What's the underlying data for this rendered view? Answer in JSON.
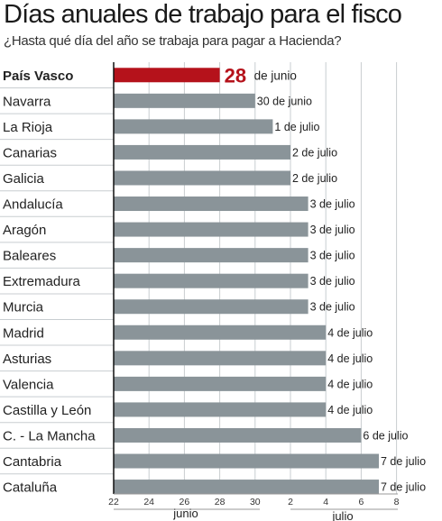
{
  "title": "Días anuales de trabajo para el fisco",
  "subtitle": "¿Hasta qué día del año se trabaja para pagar a Hacienda?",
  "colors": {
    "highlight": "#b5121b",
    "bar": "#8a9499",
    "grid": "#c8cdd0",
    "rule": "#c8cdd0"
  },
  "chart_data": {
    "type": "bar",
    "orientation": "horizontal",
    "title": "Días anuales de trabajo para el fisco",
    "subtitle": "¿Hasta qué día del año se trabaja para pagar a Hacienda?",
    "x_axis": {
      "unit": "day",
      "range": [
        "22 de junio",
        "8 de julio"
      ],
      "tick_labels": [
        "22",
        "24",
        "26",
        "28",
        "30",
        "2",
        "4",
        "6",
        "8"
      ],
      "month_labels": [
        "junio",
        "julio"
      ]
    },
    "grid": true,
    "highlight_category": "País Vasco",
    "categories": [
      "País Vasco",
      "Navarra",
      "La Rioja",
      "Canarias",
      "Galicia",
      "Andalucía",
      "Aragón",
      "Baleares",
      "Extremadura",
      "Murcia",
      "Madrid",
      "Asturias",
      "Valencia",
      "Castilla y León",
      "C. - La Mancha",
      "Cantabria",
      "Cataluña"
    ],
    "values": [
      "28 de junio",
      "30 de junio",
      "1 de julio",
      "2 de julio",
      "2 de julio",
      "3 de julio",
      "3 de julio",
      "3 de julio",
      "3 de julio",
      "3 de julio",
      "4 de julio",
      "4 de julio",
      "4 de julio",
      "4 de julio",
      "6 de julio",
      "7 de julio",
      "7 de julio"
    ],
    "highlight_label": {
      "number": "28",
      "text": "de junio"
    }
  }
}
